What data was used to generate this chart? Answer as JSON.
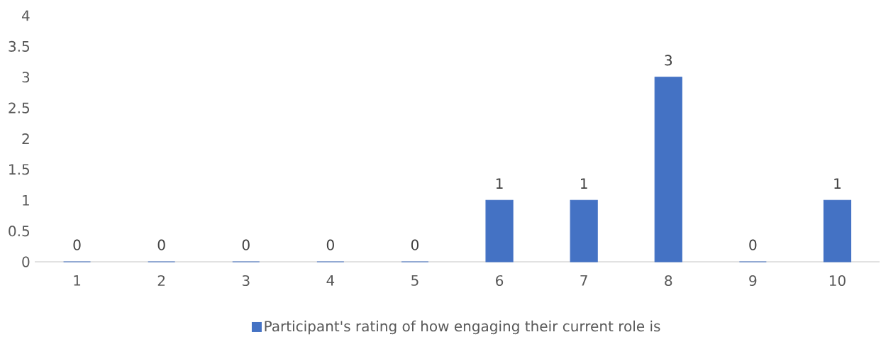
{
  "chart_data": {
    "type": "bar",
    "categories": [
      "1",
      "2",
      "3",
      "4",
      "5",
      "6",
      "7",
      "8",
      "9",
      "10"
    ],
    "series": [
      {
        "name": "Participant's rating of how engaging their current role is",
        "color": "#4472c4",
        "values": [
          0,
          0,
          0,
          0,
          0,
          1,
          1,
          3,
          0,
          1
        ]
      }
    ],
    "ylim": [
      0,
      4
    ],
    "yticks": [
      0,
      0.5,
      1,
      1.5,
      2,
      2.5,
      3,
      3.5,
      4
    ],
    "data_labels": true,
    "legend": "bottom"
  }
}
